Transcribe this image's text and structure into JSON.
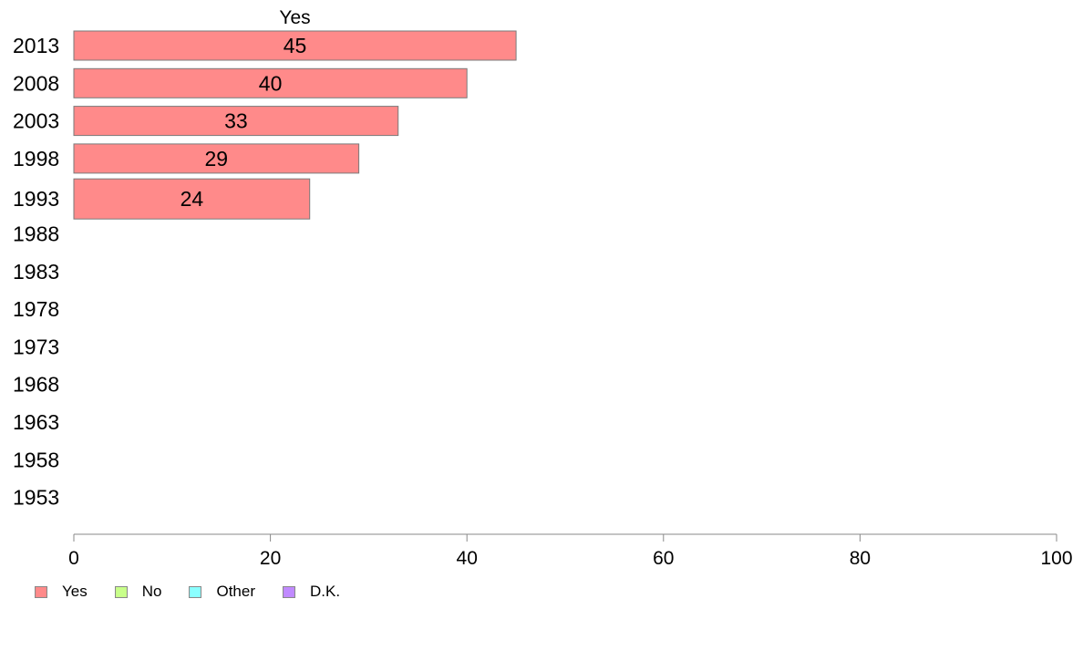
{
  "chart_data": {
    "type": "bar",
    "orientation": "horizontal",
    "panel_title": "Yes",
    "categories": [
      "2013",
      "2008",
      "2003",
      "1998",
      "1993",
      "1988",
      "1983",
      "1978",
      "1973",
      "1968",
      "1963",
      "1958",
      "1953"
    ],
    "series": [
      {
        "name": "Yes",
        "color": "#ff8a8a",
        "values": [
          45,
          40,
          33,
          29,
          24,
          null,
          null,
          null,
          null,
          null,
          null,
          null,
          null
        ]
      }
    ],
    "data_labels": [
      "45",
      "40",
      "33",
      "29",
      "24"
    ],
    "xlim": [
      0,
      100
    ],
    "xticks": [
      "0",
      "20",
      "40",
      "60",
      "80",
      "100"
    ],
    "grid": false,
    "legend_position": "bottom-left"
  },
  "legend": [
    {
      "label": "Yes",
      "color": "#ff8a8a"
    },
    {
      "label": "No",
      "color": "#c8ff8a"
    },
    {
      "label": "Other",
      "color": "#8affff"
    },
    {
      "label": "D.K.",
      "color": "#c08aff"
    }
  ]
}
